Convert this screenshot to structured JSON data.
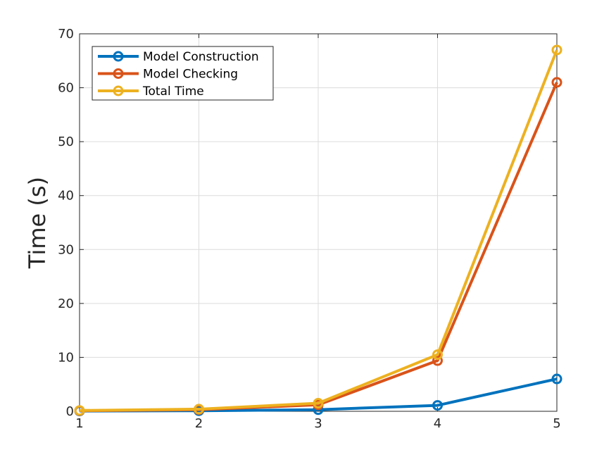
{
  "chart_data": {
    "type": "line",
    "x": [
      1,
      2,
      3,
      4,
      5
    ],
    "xlim": [
      1,
      5
    ],
    "ylim": [
      0,
      70
    ],
    "xticks": [
      1,
      2,
      3,
      4,
      5
    ],
    "yticks": [
      0,
      10,
      20,
      30,
      40,
      50,
      60,
      70
    ],
    "xlabel": "",
    "ylabel": "Time (s)",
    "grid": true,
    "legend_position": "top-left",
    "series": [
      {
        "name": "Model Construction",
        "color": "#0072BD",
        "values": [
          0.05,
          0.1,
          0.3,
          1.1,
          6.0
        ]
      },
      {
        "name": "Model Checking",
        "color": "#D95319",
        "values": [
          0.1,
          0.3,
          1.2,
          9.4,
          61.0
        ]
      },
      {
        "name": "Total Time",
        "color": "#EDB120",
        "values": [
          0.15,
          0.4,
          1.5,
          10.5,
          67.0
        ]
      }
    ]
  }
}
